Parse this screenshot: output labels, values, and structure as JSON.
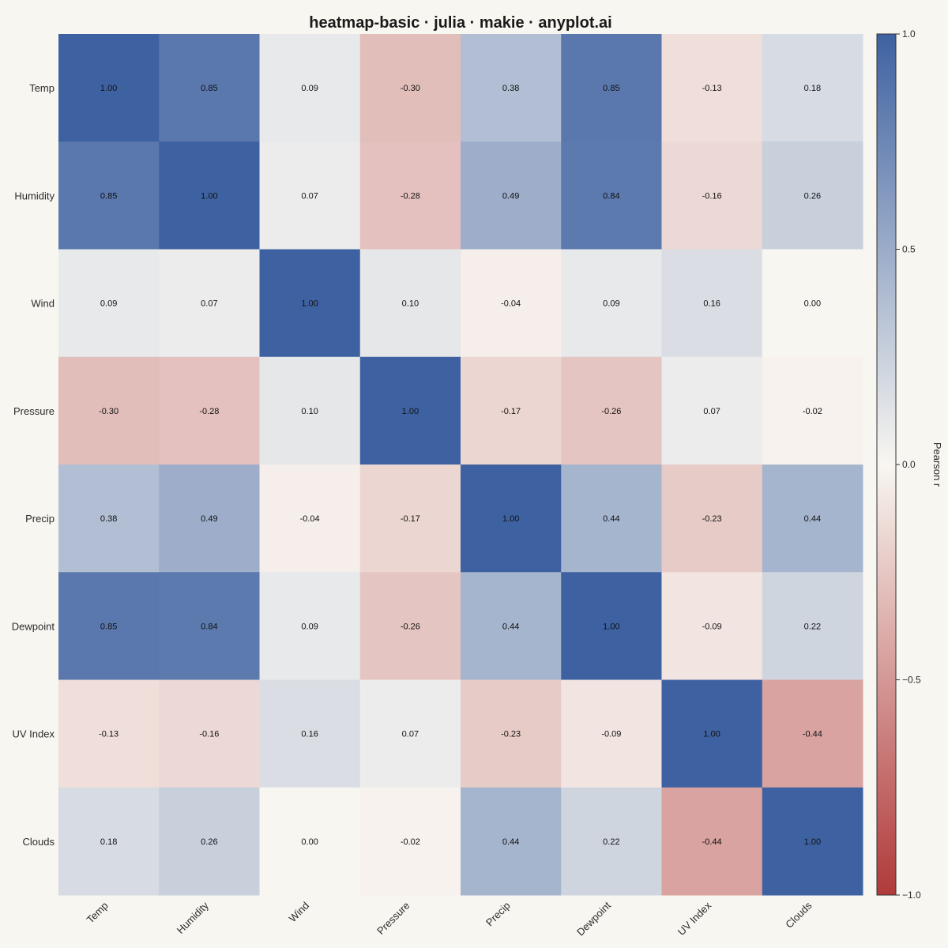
{
  "chart_data": {
    "type": "heatmap",
    "title": "heatmap-basic · julia · makie · anyplot.ai",
    "variables": [
      "Temp",
      "Humidity",
      "Wind",
      "Pressure",
      "Precip",
      "Dewpoint",
      "UV Index",
      "Clouds"
    ],
    "values": [
      [
        1.0,
        0.85,
        0.09,
        -0.3,
        0.38,
        0.85,
        -0.13,
        0.18
      ],
      [
        0.85,
        1.0,
        0.07,
        -0.28,
        0.49,
        0.84,
        -0.16,
        0.26
      ],
      [
        0.09,
        0.07,
        1.0,
        0.1,
        -0.04,
        0.09,
        0.16,
        0.0
      ],
      [
        -0.3,
        -0.28,
        0.1,
        1.0,
        -0.17,
        -0.26,
        0.07,
        -0.02
      ],
      [
        0.38,
        0.49,
        -0.04,
        -0.17,
        1.0,
        0.44,
        -0.23,
        0.44
      ],
      [
        0.85,
        0.84,
        0.09,
        -0.26,
        0.44,
        1.0,
        -0.09,
        0.22
      ],
      [
        -0.13,
        -0.16,
        0.16,
        0.07,
        -0.23,
        -0.09,
        1.0,
        -0.44
      ],
      [
        0.18,
        0.26,
        0.0,
        -0.02,
        0.44,
        0.22,
        -0.44,
        1.0
      ]
    ],
    "value_format": "2 decimals",
    "colorbar": {
      "label": "Pearson r",
      "range": [
        -1.0,
        1.0
      ],
      "ticks": [
        1.0,
        0.5,
        0.0,
        -0.5,
        -1.0
      ],
      "tick_labels": [
        "1.0",
        "0.5",
        "0.0",
        "−0.5",
        "−1.0"
      ]
    },
    "colormap": {
      "low": "#B03A3A",
      "mid": "#F8F6F1",
      "high": "#3E62A1"
    },
    "background": "#F8F6F1",
    "grid": false
  }
}
